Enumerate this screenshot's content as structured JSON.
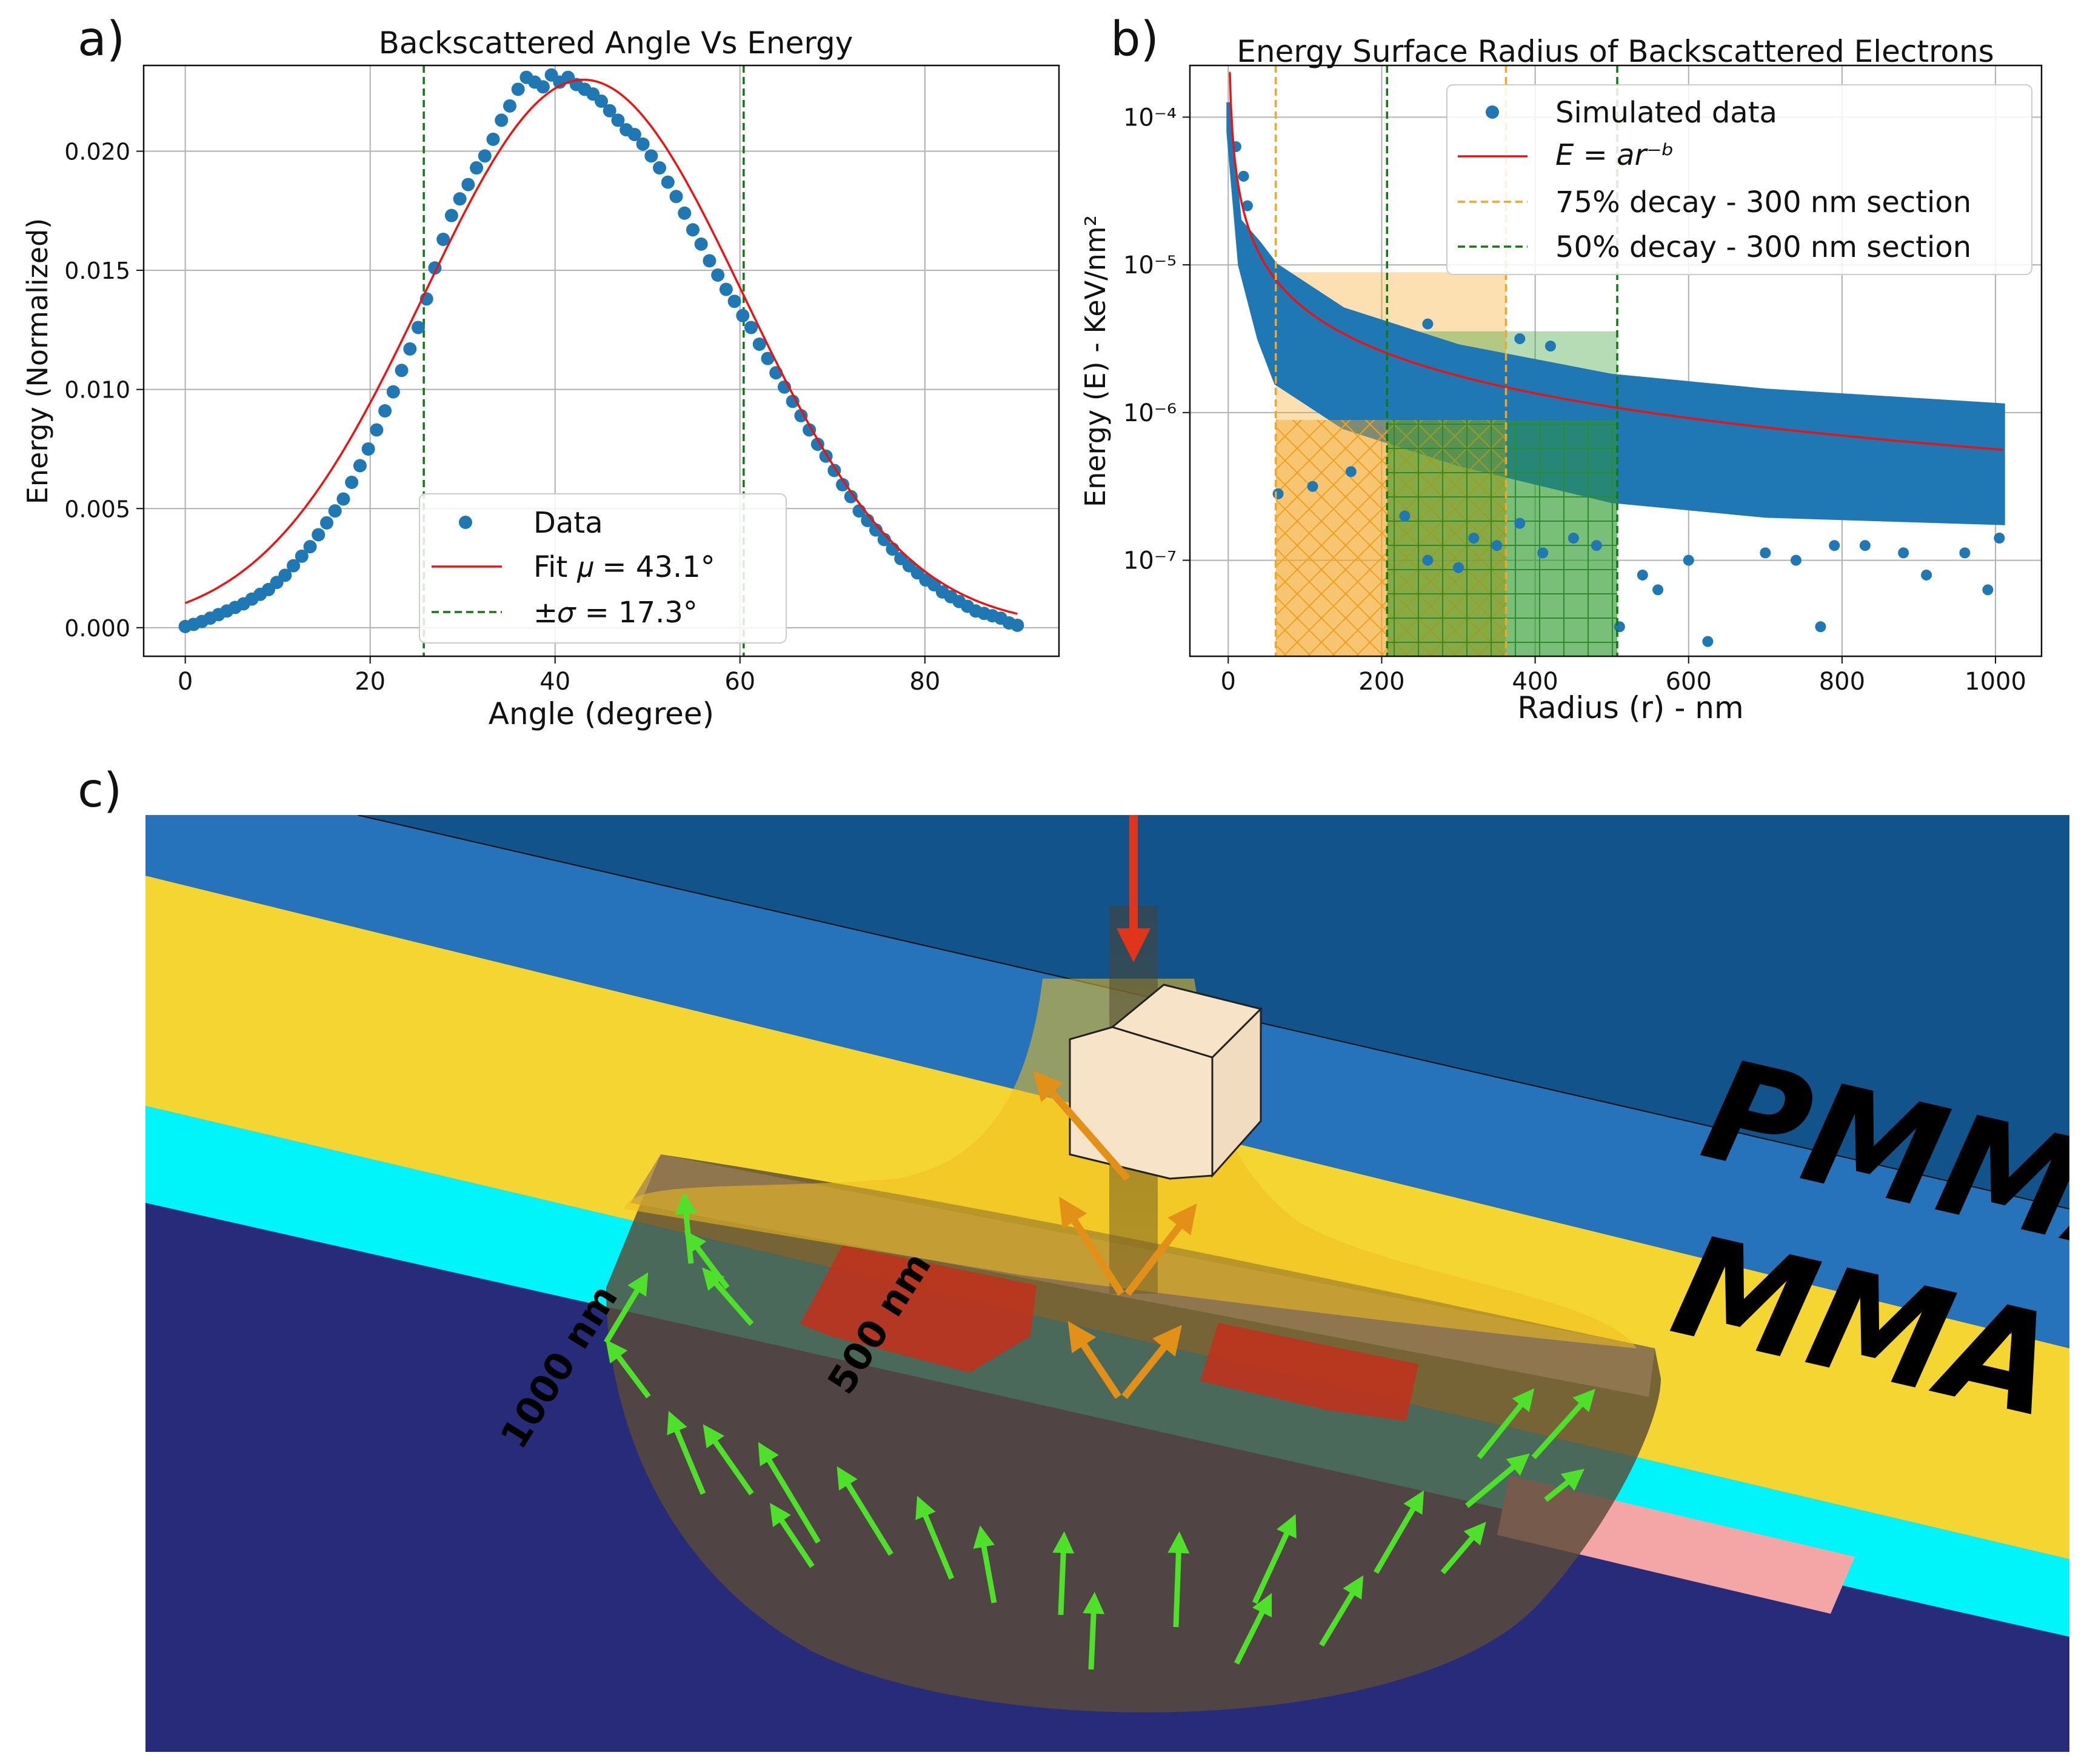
{
  "panel_letters": {
    "a": "a)",
    "b": "b)",
    "c": "c)"
  },
  "chart_data": [
    {
      "type": "scatter",
      "title": "Backscattered Angle Vs Energy",
      "xlabel": "Angle (degree)",
      "ylabel": "Energy (Normalized)",
      "xlim": [
        -4.5,
        94.5
      ],
      "ylim": [
        -0.0012,
        0.0236
      ],
      "xticks": [
        0,
        20,
        40,
        60,
        80
      ],
      "xtick_labels": [
        "0",
        "20",
        "40",
        "60",
        "80"
      ],
      "yticks": [
        0.0,
        0.005,
        0.01,
        0.015,
        0.02
      ],
      "ytick_labels": [
        "0.000",
        "0.005",
        "0.010",
        "0.015",
        "0.020"
      ],
      "grid": true,
      "legend_position": "lower-center",
      "series": [
        {
          "name": "Data",
          "kind": "scatter",
          "color": "#1f77b4",
          "x": [
            0,
            0.9,
            1.8,
            2.7,
            3.6,
            4.5,
            5.4,
            6.3,
            7.2,
            8.1,
            9,
            9.9,
            10.8,
            11.7,
            12.6,
            13.5,
            14.4,
            15.3,
            16.2,
            17.1,
            18,
            18.9,
            19.8,
            20.7,
            21.6,
            22.5,
            23.4,
            24.3,
            25.2,
            26.1,
            27,
            27.9,
            28.8,
            29.7,
            30.6,
            31.5,
            32.4,
            33.3,
            34.2,
            35.1,
            36,
            36.9,
            37.8,
            38.7,
            39.6,
            40.5,
            41.4,
            42.3,
            43.2,
            44.1,
            45,
            45.9,
            46.8,
            47.7,
            48.6,
            49.5,
            50.4,
            51.3,
            52.2,
            53.1,
            54,
            54.9,
            55.8,
            56.7,
            57.6,
            58.5,
            59.4,
            60.3,
            61.2,
            62.1,
            63,
            63.9,
            64.8,
            65.7,
            66.6,
            67.5,
            68.4,
            69.3,
            70.2,
            71.1,
            72,
            72.9,
            73.8,
            74.7,
            75.6,
            76.5,
            77.4,
            78.3,
            79.2,
            80.1,
            81,
            81.9,
            82.8,
            83.7,
            84.6,
            85.5,
            86.4,
            87.3,
            88.2,
            89.1,
            90
          ],
          "y": [
            5e-05,
            0.00014,
            0.00026,
            0.0004,
            0.00055,
            0.0007,
            0.00085,
            0.001,
            0.0012,
            0.0014,
            0.0016,
            0.0019,
            0.0022,
            0.0026,
            0.003,
            0.0034,
            0.0039,
            0.0044,
            0.0049,
            0.0054,
            0.0061,
            0.0068,
            0.0075,
            0.0083,
            0.0091,
            0.0099,
            0.0108,
            0.0117,
            0.0126,
            0.0138,
            0.0151,
            0.0163,
            0.0173,
            0.018,
            0.0186,
            0.0193,
            0.0198,
            0.0205,
            0.0213,
            0.0219,
            0.0226,
            0.0231,
            0.0229,
            0.0227,
            0.0232,
            0.0229,
            0.0231,
            0.0228,
            0.0226,
            0.0224,
            0.0221,
            0.0217,
            0.0213,
            0.0209,
            0.0207,
            0.0203,
            0.0198,
            0.0193,
            0.0187,
            0.0181,
            0.0174,
            0.0167,
            0.0161,
            0.0154,
            0.0148,
            0.0142,
            0.0137,
            0.0131,
            0.0126,
            0.0119,
            0.0113,
            0.0107,
            0.0101,
            0.0095,
            0.0089,
            0.0083,
            0.0077,
            0.0072,
            0.0066,
            0.006,
            0.0055,
            0.0049,
            0.0045,
            0.0041,
            0.0037,
            0.0033,
            0.0029,
            0.0026,
            0.0023,
            0.002,
            0.0018,
            0.0015,
            0.0013,
            0.0011,
            0.0009,
            0.0007,
            0.0006,
            0.0005,
            0.0004,
            0.0002,
            0.0001
          ]
        },
        {
          "name": "Fit  μ = 43.1°",
          "kind": "gaussian",
          "color": "#ee1111",
          "mu": 43.1,
          "sigma": 17.3,
          "amplitude": 0.023,
          "x_range": [
            0,
            90
          ]
        },
        {
          "name": "±σ = 17.3°",
          "kind": "vline",
          "color": "#107a10",
          "x": [
            25.8,
            60.4
          ]
        }
      ],
      "legend": [
        {
          "label": "Data",
          "marker": "dot",
          "color": "#1f77b4"
        },
        {
          "label": "Fit  𝜇 = 43.1°",
          "marker": "line",
          "color": "#ee1111"
        },
        {
          "label": "±𝜎 = 17.3°",
          "marker": "dash",
          "color": "#107a10"
        }
      ]
    },
    {
      "type": "scatter",
      "title": "Energy Surface Radius of Backscattered Electrons",
      "xlabel": "Radius (r) - nm",
      "ylabel": "Energy (E) - KeV/nm²",
      "yscale": "log",
      "xlim": [
        -50,
        1060
      ],
      "ylim_log10": [
        -7.65,
        -3.65
      ],
      "xticks": [
        0,
        200,
        400,
        600,
        800,
        1000
      ],
      "xtick_labels": [
        "0",
        "200",
        "400",
        "600",
        "800",
        "1000"
      ],
      "yticks_log10": [
        -7,
        -6,
        -5,
        -4
      ],
      "ytick_labels": [
        "10⁻⁷",
        "10⁻⁶",
        "10⁻⁵",
        "10⁻⁴"
      ],
      "grid": true,
      "legend_position": "top-right",
      "fit": {
        "a": 0.0004,
        "b": 0.95,
        "r_range": [
          1,
          1010
        ]
      },
      "sections": [
        {
          "name": "75% decay - 300 nm section",
          "color": "#f5a623",
          "x": [
            62,
            362
          ],
          "hatch": "x"
        },
        {
          "name": "50% decay - 300 nm section",
          "color": "#2e9a2e",
          "x": [
            207,
            507
          ],
          "hatch": "+"
        }
      ],
      "band": {
        "upper": [
          [
            0,
            -3.9
          ],
          [
            15,
            -4.7
          ],
          [
            40,
            -4.85
          ],
          [
            62,
            -5.0
          ],
          [
            150,
            -5.3
          ],
          [
            300,
            -5.55
          ],
          [
            500,
            -5.75
          ],
          [
            700,
            -5.85
          ],
          [
            1010,
            -5.95
          ]
        ],
        "lower": [
          [
            0,
            -4.1
          ],
          [
            15,
            -5.0
          ],
          [
            40,
            -5.5
          ],
          [
            62,
            -5.8
          ],
          [
            150,
            -6.1
          ],
          [
            300,
            -6.35
          ],
          [
            500,
            -6.6
          ],
          [
            700,
            -6.7
          ],
          [
            1010,
            -6.75
          ]
        ]
      },
      "outliers": [
        [
          65,
          -6.55
        ],
        [
          110,
          -6.5
        ],
        [
          160,
          -6.4
        ],
        [
          230,
          -6.7
        ],
        [
          260,
          -7.0
        ],
        [
          300,
          -7.05
        ],
        [
          320,
          -6.85
        ],
        [
          350,
          -6.9
        ],
        [
          380,
          -6.75
        ],
        [
          410,
          -6.95
        ],
        [
          450,
          -6.85
        ],
        [
          480,
          -6.9
        ],
        [
          510,
          -7.45
        ],
        [
          540,
          -7.1
        ],
        [
          560,
          -7.2
        ],
        [
          600,
          -7.0
        ],
        [
          625,
          -7.55
        ],
        [
          700,
          -6.95
        ],
        [
          740,
          -7.0
        ],
        [
          772,
          -7.45
        ],
        [
          790,
          -6.9
        ],
        [
          830,
          -6.9
        ],
        [
          880,
          -6.95
        ],
        [
          910,
          -7.1
        ],
        [
          960,
          -6.95
        ],
        [
          990,
          -7.2
        ],
        [
          1005,
          -6.85
        ],
        [
          20,
          -4.4
        ],
        [
          25,
          -4.6
        ],
        [
          10,
          -4.2
        ],
        [
          200,
          -5.45
        ],
        [
          250,
          -5.5
        ],
        [
          260,
          -5.4
        ],
        [
          380,
          -5.5
        ],
        [
          420,
          -5.55
        ],
        [
          230,
          -5.6
        ]
      ],
      "legend": [
        {
          "label": "Simulated data",
          "marker": "dot",
          "color": "#1f77b4"
        },
        {
          "label": "E = ar⁻ᵇ",
          "marker": "line",
          "color": "#ee1111"
        },
        {
          "label": "75% decay - 300 nm section",
          "marker": "dash",
          "color": "#f5a623"
        },
        {
          "label": "50% decay - 300 nm section",
          "marker": "dash",
          "color": "#107a10"
        }
      ]
    }
  ],
  "illustration": {
    "label_pmma": "PMMA",
    "label_mma": "MMA",
    "label_500": "500 nm",
    "label_1000": "1000 nm"
  }
}
